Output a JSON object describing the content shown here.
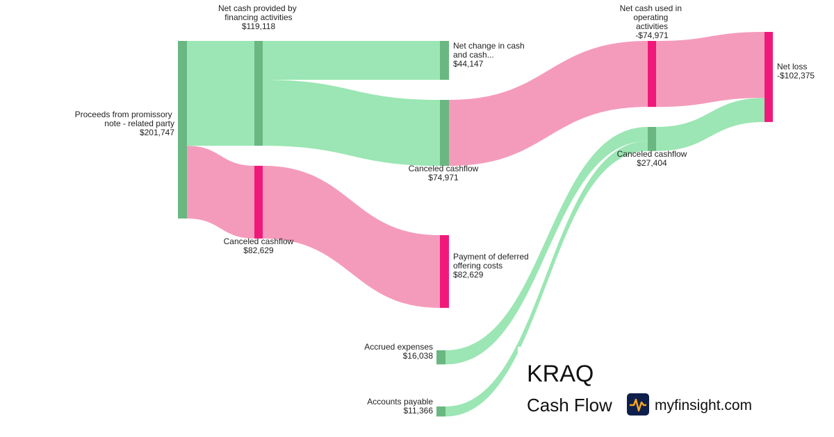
{
  "chart_data": {
    "type": "sankey",
    "nodes": [
      {
        "name": "Proceeds from promissory note - related party",
        "value": 201747,
        "value_label": "$201,747",
        "color": "#6ab782"
      },
      {
        "name": "Net cash provided by financing activities",
        "value": 119118,
        "value_label": "$119,118",
        "color": "#6ab782"
      },
      {
        "name": "Canceled cashflow",
        "value": 82629,
        "value_label": "$82,629",
        "color": "#f0197a"
      },
      {
        "name": "Net change in cash and cash...",
        "value": 44147,
        "value_label": "$44,147",
        "color": "#6ab782"
      },
      {
        "name": "Canceled cashflow",
        "value": 74971,
        "value_label": "$74,971",
        "color": "#6ab782"
      },
      {
        "name": "Payment of deferred offering costs",
        "value": 82629,
        "value_label": "$82,629",
        "color": "#f0197a"
      },
      {
        "name": "Accrued expenses",
        "value": 16038,
        "value_label": "$16,038",
        "color": "#6ab782"
      },
      {
        "name": "Accounts payable",
        "value": 11366,
        "value_label": "$11,366",
        "color": "#6ab782"
      },
      {
        "name": "Canceled cashflow",
        "value": 27404,
        "value_label": "$27,404",
        "color": "#6ab782"
      },
      {
        "name": "Net cash used in operating activities",
        "value": -74971,
        "value_label": "-$74,971",
        "color": "#f0197a"
      },
      {
        "name": "Net loss",
        "value": -102375,
        "value_label": "-$102,375",
        "color": "#f0197a"
      }
    ],
    "links": [
      {
        "source": 0,
        "target": 1,
        "value": 119118,
        "color": "#9be6b4"
      },
      {
        "source": 0,
        "target": 2,
        "value": 82629,
        "color": "#f49bbb"
      },
      {
        "source": 1,
        "target": 3,
        "value": 44147,
        "color": "#9be6b4"
      },
      {
        "source": 1,
        "target": 4,
        "value": 74971,
        "color": "#9be6b4"
      },
      {
        "source": 2,
        "target": 5,
        "value": 82629,
        "color": "#f49bbb"
      },
      {
        "source": 4,
        "target": 9,
        "value": 74971,
        "color": "#f49bbb"
      },
      {
        "source": 6,
        "target": 8,
        "value": 16038,
        "color": "#9be6b4"
      },
      {
        "source": 7,
        "target": 8,
        "value": 11366,
        "color": "#9be6b4"
      },
      {
        "source": 9,
        "target": 10,
        "value": 74971,
        "color": "#f49bbb"
      },
      {
        "source": 8,
        "target": 10,
        "value": 27404,
        "color": "#9be6b4"
      }
    ]
  },
  "footer": {
    "ticker": "KRAQ",
    "subtitle": "Cash Flow",
    "brand": "myfinsight.com"
  }
}
